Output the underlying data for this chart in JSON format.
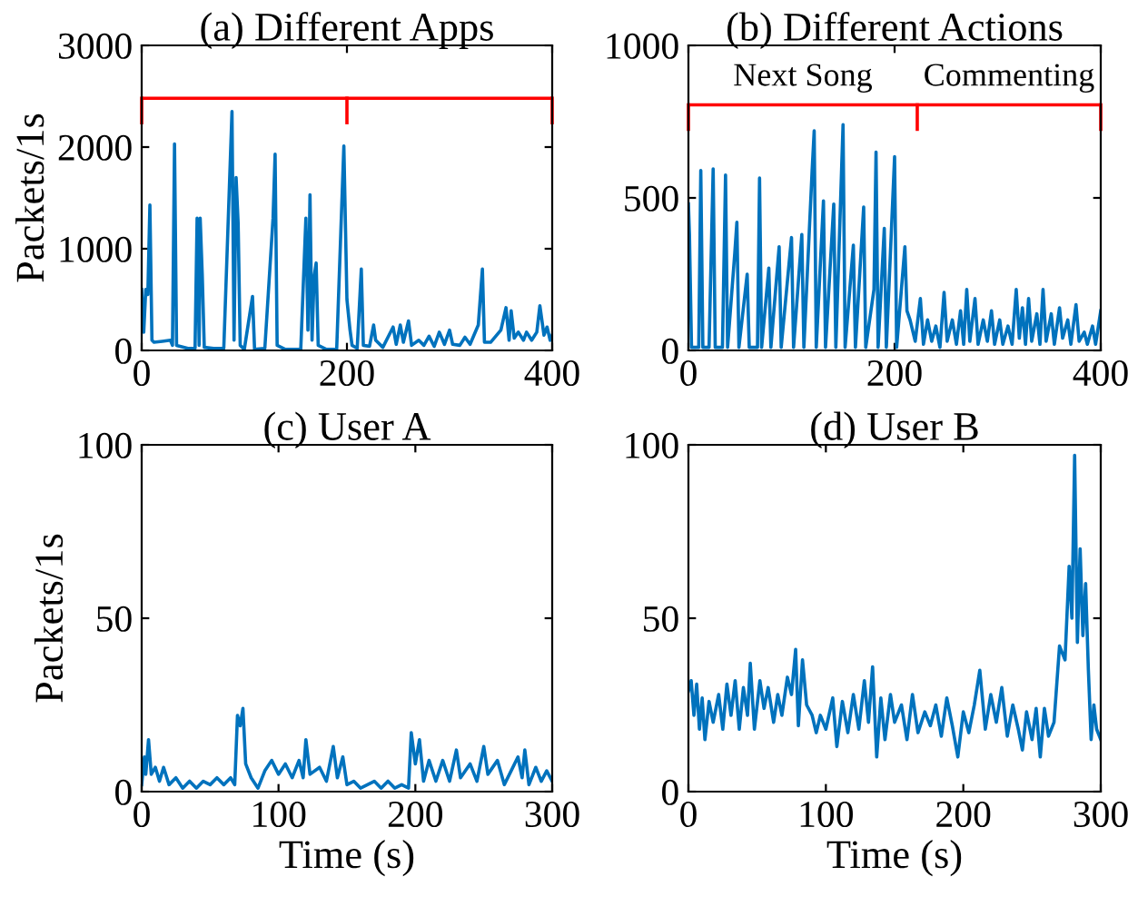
{
  "chart_data": [
    {
      "type": "line",
      "title": "(a) Different Apps",
      "ylabel": "Packets/1s",
      "xlim": [
        0,
        400
      ],
      "ylim": [
        0,
        3000
      ],
      "xticks": [
        0,
        200,
        400
      ],
      "yticks": [
        0,
        1000,
        2000,
        3000
      ],
      "grid": false,
      "ref_lines": [
        {
          "axis": "y",
          "value": 2480,
          "color": "#ff0000"
        },
        {
          "axis": "x",
          "value": 0,
          "color": "#ff0000"
        },
        {
          "axis": "x",
          "value": 200,
          "color": "#ff0000"
        },
        {
          "axis": "x",
          "value": 400,
          "color": "#ff0000"
        }
      ],
      "series": [
        {
          "color": "#0072bd",
          "x": [
            0,
            2,
            4,
            6,
            8,
            10,
            12,
            20,
            28,
            30,
            32,
            34,
            45,
            52,
            54,
            56,
            57,
            59,
            61,
            70,
            80,
            88,
            90,
            92,
            94,
            96,
            100,
            108,
            110,
            120,
            128,
            130,
            132,
            140,
            155,
            160,
            162,
            164,
            166,
            168,
            170,
            172,
            180,
            190,
            197,
            200,
            203,
            205,
            210,
            214,
            216,
            222,
            226,
            228,
            235,
            245,
            248,
            252,
            255,
            260,
            263,
            270,
            275,
            280,
            285,
            290,
            295,
            300,
            303,
            310,
            315,
            320,
            328,
            332,
            334,
            340,
            350,
            355,
            358,
            360,
            363,
            367,
            372,
            375,
            380,
            385,
            388,
            392,
            395,
            398,
            400
          ],
          "values": [
            600,
            180,
            600,
            550,
            1430,
            100,
            80,
            90,
            100,
            50,
            2030,
            50,
            20,
            20,
            1300,
            50,
            1300,
            750,
            30,
            20,
            20,
            2350,
            100,
            1700,
            1250,
            50,
            10,
            530,
            10,
            20,
            1300,
            1930,
            50,
            10,
            10,
            1300,
            200,
            1530,
            100,
            720,
            860,
            50,
            10,
            10,
            2010,
            500,
            200,
            50,
            20,
            800,
            50,
            40,
            250,
            100,
            30,
            230,
            60,
            250,
            80,
            290,
            50,
            100,
            50,
            140,
            40,
            180,
            60,
            200,
            60,
            50,
            130,
            60,
            250,
            800,
            80,
            80,
            200,
            420,
            100,
            390,
            120,
            180,
            100,
            180,
            100,
            180,
            440,
            150,
            230,
            100,
            150
          ]
        }
      ]
    },
    {
      "type": "line",
      "title": "(b) Different Actions",
      "xlim": [
        0,
        400
      ],
      "ylim": [
        0,
        1000
      ],
      "xticks": [
        0,
        200,
        400
      ],
      "yticks": [
        0,
        500,
        1000
      ],
      "grid": false,
      "annotations": [
        "Next Song",
        "Commenting"
      ],
      "ref_lines": [
        {
          "axis": "y",
          "value": 805,
          "color": "#ff0000"
        },
        {
          "axis": "x",
          "value": 0,
          "color": "#ff0000"
        },
        {
          "axis": "x",
          "value": 222,
          "color": "#ff0000"
        },
        {
          "axis": "x",
          "value": 400,
          "color": "#ff0000"
        }
      ],
      "series": [
        {
          "color": "#0072bd",
          "x": [
            0,
            1,
            3,
            10,
            12,
            14,
            20,
            24,
            26,
            33,
            36,
            38,
            45,
            47,
            49,
            57,
            59,
            67,
            69,
            71,
            78,
            80,
            88,
            90,
            100,
            102,
            110,
            112,
            120,
            122,
            124,
            131,
            133,
            141,
            143,
            150,
            152,
            160,
            162,
            170,
            172,
            180,
            182,
            184,
            190,
            192,
            200,
            202,
            210,
            212,
            215,
            220,
            225,
            228,
            232,
            236,
            240,
            244,
            248,
            251,
            256,
            260,
            264,
            267,
            270,
            273,
            278,
            281,
            286,
            290,
            294,
            297,
            302,
            305,
            310,
            314,
            318,
            321,
            324,
            327,
            330,
            333,
            338,
            341,
            344,
            347,
            352,
            355,
            360,
            363,
            368,
            371,
            376,
            379,
            384,
            387,
            392,
            395,
            400
          ],
          "values": [
            480,
            380,
            10,
            10,
            590,
            10,
            10,
            595,
            10,
            10,
            575,
            10,
            320,
            420,
            10,
            250,
            10,
            10,
            565,
            10,
            270,
            10,
            340,
            10,
            370,
            10,
            380,
            10,
            590,
            720,
            10,
            490,
            10,
            480,
            10,
            740,
            10,
            345,
            10,
            470,
            10,
            200,
            650,
            10,
            400,
            10,
            635,
            10,
            340,
            130,
            100,
            30,
            170,
            20,
            100,
            30,
            80,
            10,
            190,
            30,
            100,
            20,
            130,
            20,
            200,
            30,
            170,
            20,
            100,
            30,
            130,
            20,
            100,
            20,
            80,
            20,
            200,
            40,
            140,
            20,
            170,
            30,
            120,
            20,
            200,
            30,
            120,
            20,
            140,
            40,
            100,
            20,
            150,
            30,
            60,
            20,
            80,
            20,
            130
          ]
        }
      ]
    },
    {
      "type": "line",
      "title": "(c) User A",
      "xlabel": "Time (s)",
      "ylabel": "Packets/1s",
      "xlim": [
        0,
        300
      ],
      "ylim": [
        0,
        100
      ],
      "xticks": [
        0,
        100,
        200,
        300
      ],
      "yticks": [
        0,
        50,
        100
      ],
      "grid": false,
      "series": [
        {
          "color": "#0072bd",
          "x": [
            0,
            2,
            3,
            5,
            7,
            10,
            13,
            16,
            20,
            25,
            30,
            35,
            40,
            45,
            50,
            55,
            60,
            65,
            68,
            70,
            72,
            74,
            76,
            80,
            85,
            90,
            95,
            100,
            105,
            110,
            115,
            118,
            120,
            123,
            130,
            135,
            140,
            143,
            147,
            150,
            155,
            160,
            165,
            170,
            175,
            180,
            185,
            190,
            195,
            197,
            200,
            203,
            206,
            210,
            215,
            220,
            225,
            230,
            233,
            240,
            245,
            250,
            253,
            260,
            265,
            270,
            275,
            278,
            280,
            283,
            288,
            292,
            296,
            300
          ],
          "values": [
            2,
            10,
            5,
            15,
            5,
            7,
            3,
            7,
            2,
            4,
            1,
            3,
            1,
            3,
            2,
            4,
            2,
            4,
            2,
            22,
            19,
            24,
            8,
            4,
            1,
            6,
            9,
            5,
            8,
            4,
            9,
            4,
            15,
            5,
            7,
            3,
            13,
            4,
            10,
            2,
            3,
            1,
            2,
            3,
            1,
            3,
            1,
            2,
            1,
            17,
            8,
            15,
            3,
            9,
            3,
            9,
            3,
            12,
            4,
            8,
            3,
            13,
            5,
            9,
            2,
            6,
            10,
            4,
            12,
            2,
            7,
            3,
            6,
            3
          ]
        }
      ]
    },
    {
      "type": "line",
      "title": "(d) User B",
      "xlabel": "Time (s)",
      "xlim": [
        0,
        300
      ],
      "ylim": [
        0,
        100
      ],
      "xticks": [
        0,
        100,
        200,
        300
      ],
      "yticks": [
        0,
        50,
        100
      ],
      "grid": false,
      "series": [
        {
          "color": "#0072bd",
          "x": [
            0,
            2,
            4,
            6,
            8,
            10,
            12,
            15,
            18,
            22,
            25,
            28,
            31,
            34,
            37,
            40,
            43,
            45,
            48,
            52,
            55,
            58,
            62,
            65,
            68,
            72,
            75,
            78,
            80,
            83,
            86,
            90,
            93,
            96,
            100,
            105,
            108,
            112,
            116,
            120,
            124,
            128,
            131,
            134,
            137,
            140,
            143,
            147,
            150,
            155,
            159,
            163,
            167,
            172,
            176,
            180,
            184,
            188,
            192,
            196,
            200,
            204,
            208,
            212,
            216,
            220,
            224,
            228,
            232,
            236,
            240,
            243,
            246,
            250,
            253,
            256,
            259,
            262,
            266,
            270,
            274,
            277,
            279,
            281,
            283,
            285,
            287,
            289,
            291,
            293,
            295,
            297,
            300
          ],
          "values": [
            29,
            32,
            22,
            31,
            18,
            27,
            15,
            26,
            20,
            28,
            18,
            31,
            22,
            32,
            18,
            30,
            22,
            37,
            18,
            32,
            24,
            30,
            20,
            28,
            22,
            33,
            28,
            41,
            19,
            38,
            25,
            22,
            17,
            22,
            18,
            27,
            13,
            26,
            17,
            28,
            18,
            32,
            20,
            36,
            10,
            27,
            15,
            28,
            20,
            25,
            15,
            28,
            17,
            23,
            19,
            25,
            16,
            27,
            19,
            10,
            23,
            17,
            25,
            35,
            18,
            28,
            20,
            30,
            16,
            25,
            18,
            12,
            23,
            15,
            24,
            10,
            24,
            16,
            20,
            42,
            38,
            65,
            50,
            97,
            43,
            70,
            45,
            60,
            35,
            15,
            25,
            18,
            15
          ]
        }
      ]
    }
  ]
}
